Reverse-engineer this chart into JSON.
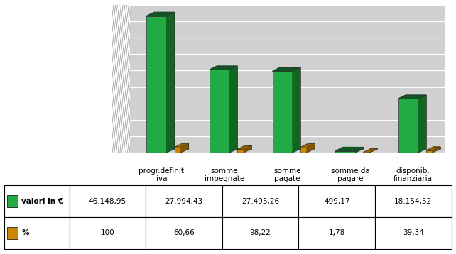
{
  "categories": [
    "progr.definit\niva",
    "somme\nimpegnate",
    "somme\npagate",
    "somme da\npagare",
    "disponib.\nfinanziaria"
  ],
  "values_eur": [
    46148.95,
    27994.43,
    27495.26,
    499.17,
    18154.52
  ],
  "values_pct": [
    100.0,
    60.66,
    98.22,
    1.78,
    39.34
  ],
  "labels_eur": [
    "46.148,95",
    "27.994,43",
    "27.495,26",
    "499,17",
    "18.154,52"
  ],
  "labels_pct": [
    "100",
    "60,66",
    "98,22",
    "1,78",
    "39,34"
  ],
  "fig_bg": "#FFFFFF",
  "plot_bg": "#D0D0D0",
  "grid_color": "#FFFFFF",
  "bar_green_face": "#22AA44",
  "bar_green_side": "#116622",
  "bar_green_top": "#115522",
  "bar_orange_face": "#CC8800",
  "bar_orange_side": "#885500",
  "bar_orange_top": "#996600",
  "table_border": "#000000",
  "table_bg": "#FFFFFF",
  "legend_green": "#22AA44",
  "legend_orange": "#CC8800"
}
